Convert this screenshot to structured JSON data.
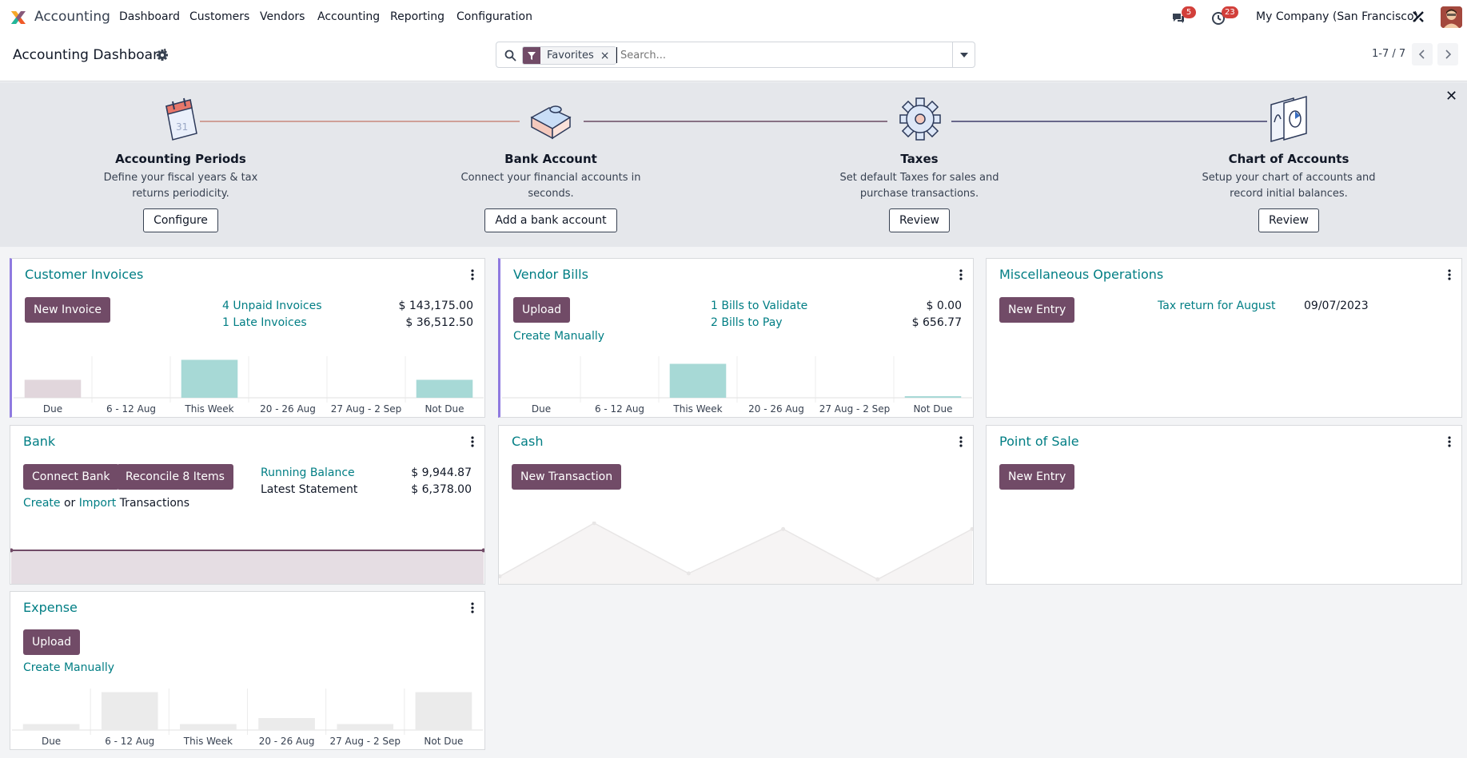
{
  "navbar": {
    "app_name": "Accounting",
    "menus": [
      "Dashboard",
      "Customers",
      "Vendors",
      "Accounting",
      "Reporting",
      "Configuration"
    ],
    "messages_count": "5",
    "activities_count": "23",
    "company": "My Company (San Francisco)"
  },
  "controlpanel": {
    "title": "Accounting Dashboard",
    "facet_label": "Favorites",
    "search_placeholder": "Search...",
    "pager": "1-7 / 7"
  },
  "onboarding": {
    "steps": [
      {
        "title": "Accounting Periods",
        "desc": "Define your fiscal years & tax returns periodicity.",
        "button": "Configure"
      },
      {
        "title": "Bank Account",
        "desc": "Connect your financial accounts in seconds.",
        "button": "Add a bank account"
      },
      {
        "title": "Taxes",
        "desc": "Set default Taxes for sales and purchase transactions.",
        "button": "Review"
      },
      {
        "title": "Chart of Accounts",
        "desc": "Setup your chart of accounts and record initial balances.",
        "button": "Review"
      }
    ]
  },
  "cards": {
    "customer_invoices": {
      "title": "Customer Invoices",
      "button": "New Invoice",
      "rows": [
        {
          "label": "4 Unpaid Invoices",
          "amount": "$ 143,175.00"
        },
        {
          "label": "1 Late Invoices",
          "amount": "$ 36,512.50"
        }
      ]
    },
    "vendor_bills": {
      "title": "Vendor Bills",
      "button": "Upload",
      "create_manually": "Create Manually",
      "rows": [
        {
          "label": "1 Bills to Validate",
          "amount": "$ 0.00"
        },
        {
          "label": "2 Bills to Pay",
          "amount": "$ 656.77"
        }
      ]
    },
    "misc": {
      "title": "Miscellaneous Operations",
      "button": "New Entry",
      "row_label": "Tax return for August",
      "row_date": "09/07/2023"
    },
    "bank": {
      "title": "Bank",
      "button1": "Connect Bank",
      "button2": "Reconcile 8 Items",
      "create": "Create",
      "or": "or",
      "import": "Import",
      "transactions": "Transactions",
      "rows": [
        {
          "label": "Running Balance",
          "amount": "$ 9,944.87"
        },
        {
          "label": "Latest Statement",
          "amount": "$ 6,378.00"
        }
      ]
    },
    "cash": {
      "title": "Cash",
      "button": "New Transaction"
    },
    "pos": {
      "title": "Point of Sale",
      "button": "New Entry"
    },
    "expense": {
      "title": "Expense",
      "button": "Upload",
      "create_manually": "Create Manually"
    }
  },
  "chart_data": [
    {
      "type": "bar",
      "chart": "Customer Invoices",
      "categories": [
        "Due",
        "6 - 12 Aug",
        "This Week",
        "20 - 26 Aug",
        "27 Aug - 2 Sep",
        "Not Due"
      ],
      "values": [
        0.45,
        0,
        0.95,
        0,
        0,
        0.45
      ],
      "colors": [
        "#e1d6dc",
        "#a7d9d6",
        "#a7d9d6",
        "#a7d9d6",
        "#a7d9d6",
        "#a7d9d6"
      ]
    },
    {
      "type": "bar",
      "chart": "Vendor Bills",
      "categories": [
        "Due",
        "6 - 12 Aug",
        "This Week",
        "20 - 26 Aug",
        "27 Aug - 2 Sep",
        "Not Due"
      ],
      "values": [
        0,
        0,
        0.85,
        0,
        0,
        0.04
      ],
      "colors": [
        "#a7d9d6",
        "#a7d9d6",
        "#a7d9d6",
        "#a7d9d6",
        "#a7d9d6",
        "#a7d9d6"
      ]
    },
    {
      "type": "bar",
      "chart": "Expense",
      "categories": [
        "Due",
        "6 - 12 Aug",
        "This Week",
        "20 - 26 Aug",
        "27 Aug - 2 Sep",
        "Not Due"
      ],
      "values": [
        0.15,
        0.95,
        0.15,
        0.3,
        0.15,
        0.95
      ],
      "colors": [
        "#ebebeb",
        "#ebebeb",
        "#ebebeb",
        "#ebebeb",
        "#ebebeb",
        "#ebebeb"
      ]
    },
    {
      "type": "area",
      "chart": "Bank",
      "values": [
        1,
        1
      ],
      "color": "#714b67"
    },
    {
      "type": "area",
      "chart": "Cash",
      "values": [
        0.1,
        1,
        0.15,
        0.9,
        0.05,
        0.9
      ],
      "color": "#e8e6e6"
    }
  ]
}
